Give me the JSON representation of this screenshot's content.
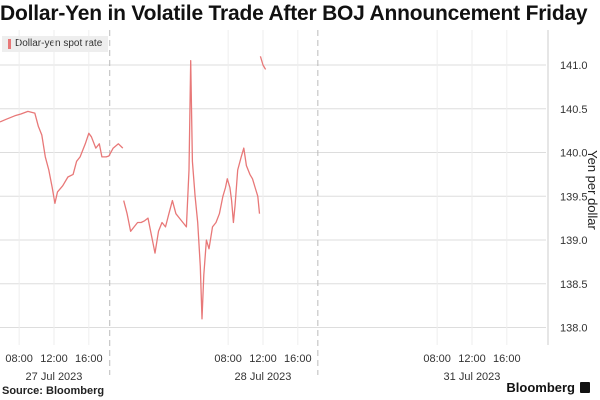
{
  "chart_data": {
    "type": "line",
    "title": "Dollar-Yen in Volatile Trade After BOJ Announcement Friday",
    "legend": [
      "Dollar-yen spot rate"
    ],
    "ylabel": "Yen per dollar",
    "xlabel": "",
    "ylim": [
      137.8,
      141.4
    ],
    "y_ticks": [
      138.0,
      138.5,
      139.0,
      139.5,
      140.0,
      140.5,
      141.0
    ],
    "y_tick_labels": [
      "138.0",
      "138.5",
      "139.0",
      "139.5",
      "140.0",
      "140.5",
      "141.0"
    ],
    "x_ticks": [
      {
        "hour": 8,
        "label": "08:00"
      },
      {
        "hour": 12,
        "label": "12:00"
      },
      {
        "hour": 16,
        "label": "16:00"
      },
      {
        "hour": 32,
        "label": "08:00"
      },
      {
        "hour": 36,
        "label": "12:00"
      },
      {
        "hour": 40,
        "label": "16:00"
      },
      {
        "hour": 56,
        "label": "08:00"
      },
      {
        "hour": 60,
        "label": "12:00"
      },
      {
        "hour": 64,
        "label": "16:00"
      }
    ],
    "date_labels": [
      {
        "hour": 12,
        "label": "27 Jul 2023"
      },
      {
        "hour": 36,
        "label": "28 Jul 2023"
      },
      {
        "hour": 60,
        "label": "31 Jul 2023"
      }
    ],
    "x_range_hours": [
      5.8,
      68.5
    ],
    "day_separators": [
      18.4,
      42.3
    ],
    "series": [
      {
        "name": "Dollar-yen spot rate",
        "segments": [
          [
            [
              5.8,
              140.35
            ],
            [
              6.5,
              140.38
            ],
            [
              7.5,
              140.42
            ],
            [
              8.2,
              140.44
            ],
            [
              9.0,
              140.47
            ],
            [
              9.8,
              140.45
            ],
            [
              10.2,
              140.3
            ],
            [
              10.6,
              140.2
            ],
            [
              11.0,
              139.95
            ],
            [
              11.4,
              139.8
            ],
            [
              11.8,
              139.6
            ],
            [
              12.1,
              139.42
            ],
            [
              12.4,
              139.55
            ],
            [
              13.0,
              139.62
            ],
            [
              13.6,
              139.72
            ],
            [
              14.2,
              139.75
            ],
            [
              14.6,
              139.9
            ],
            [
              15.0,
              139.95
            ],
            [
              15.6,
              140.1
            ],
            [
              16.0,
              140.22
            ],
            [
              16.3,
              140.18
            ],
            [
              16.8,
              140.05
            ],
            [
              17.2,
              140.1
            ],
            [
              17.5,
              139.95
            ],
            [
              18.0,
              139.95
            ],
            [
              18.3,
              139.96
            ],
            [
              18.8,
              140.05
            ],
            [
              19.4,
              140.1
            ],
            [
              19.9,
              140.05
            ]
          ],
          [
            [
              20.0,
              139.45
            ],
            [
              20.4,
              139.3
            ],
            [
              20.8,
              139.1
            ],
            [
              21.2,
              139.15
            ],
            [
              21.6,
              139.2
            ],
            [
              22.0,
              139.2
            ],
            [
              22.4,
              139.22
            ],
            [
              22.8,
              139.25
            ],
            [
              23.2,
              139.05
            ],
            [
              23.6,
              138.85
            ],
            [
              24.0,
              139.1
            ],
            [
              24.4,
              139.2
            ],
            [
              24.8,
              139.15
            ],
            [
              25.2,
              139.3
            ],
            [
              25.6,
              139.45
            ],
            [
              26.0,
              139.3
            ],
            [
              26.4,
              139.25
            ],
            [
              26.8,
              139.2
            ],
            [
              27.2,
              139.15
            ],
            [
              27.5,
              139.8
            ],
            [
              27.7,
              141.05
            ],
            [
              27.9,
              139.9
            ],
            [
              28.2,
              139.5
            ],
            [
              28.5,
              139.2
            ],
            [
              28.8,
              138.7
            ],
            [
              29.0,
              138.1
            ],
            [
              29.2,
              138.6
            ],
            [
              29.5,
              139.0
            ],
            [
              29.8,
              138.9
            ],
            [
              30.2,
              139.15
            ],
            [
              30.6,
              139.2
            ],
            [
              31.0,
              139.3
            ],
            [
              31.4,
              139.5
            ],
            [
              31.7,
              139.6
            ],
            [
              31.9,
              139.7
            ],
            [
              32.2,
              139.6
            ],
            [
              32.4,
              139.45
            ],
            [
              32.6,
              139.2
            ],
            [
              32.8,
              139.4
            ],
            [
              33.1,
              139.8
            ],
            [
              33.5,
              139.95
            ],
            [
              33.8,
              140.05
            ],
            [
              34.1,
              139.85
            ],
            [
              34.5,
              139.75
            ],
            [
              34.8,
              139.7
            ],
            [
              35.1,
              139.6
            ],
            [
              35.4,
              139.5
            ],
            [
              35.6,
              139.3
            ]
          ],
          [
            [
              35.7,
              141.1
            ],
            [
              36.0,
              141.0
            ],
            [
              36.3,
              140.95
            ]
          ]
        ]
      }
    ]
  },
  "footer": {
    "source": "Source: Bloomberg",
    "brand": "Bloomberg"
  },
  "colors": {
    "line": "#e87878",
    "grid": "#dddddd",
    "axis_text": "#333333"
  }
}
